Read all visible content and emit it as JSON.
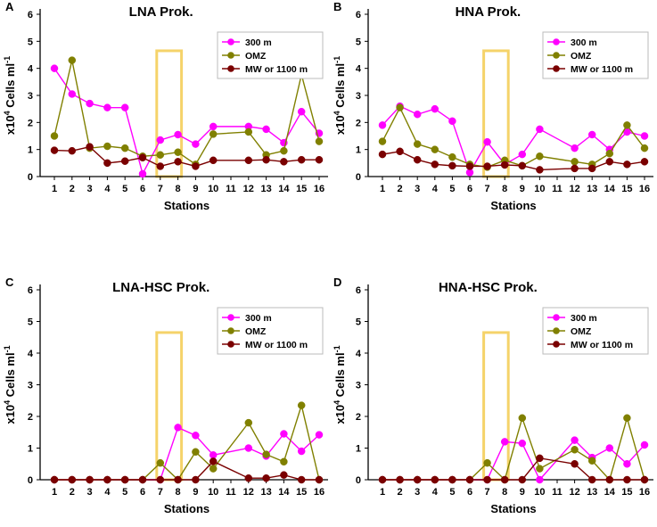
{
  "figure": {
    "line_colors": [
      "#ff00ff",
      "#808000",
      "#7a0000"
    ],
    "highlight_color": "#f5d36a",
    "axis_color": "#000000"
  },
  "chart_data": [
    {
      "type": "line",
      "panel": "A",
      "title": "LNA Prok.",
      "xlabel": "Stations",
      "ylabel_parts": [
        "x10",
        "4",
        " Cells ml",
        "-1"
      ],
      "categories": [
        "1",
        "2",
        "3",
        "4",
        "5",
        "6",
        "7",
        "8",
        "9",
        "10",
        "11",
        "12",
        "13",
        "14",
        "15",
        "16"
      ],
      "ylim": [
        0,
        6
      ],
      "yticks": [
        0,
        1,
        2,
        3,
        4,
        5,
        6
      ],
      "highlight_range": [
        7,
        8
      ],
      "highlight_top": 4.65,
      "legend_position": "top-right",
      "series": [
        {
          "name": "300 m",
          "x": [
            1,
            2,
            3,
            4,
            5,
            6,
            7,
            8,
            9,
            10,
            12,
            13,
            14,
            15,
            16
          ],
          "values": [
            4.0,
            3.05,
            2.7,
            2.55,
            2.55,
            0.1,
            1.35,
            1.55,
            1.2,
            1.85,
            1.85,
            1.75,
            1.25,
            2.4,
            1.6
          ]
        },
        {
          "name": "OMZ",
          "x": [
            1,
            2,
            3,
            4,
            5,
            6,
            7,
            8,
            9,
            10,
            12,
            13,
            14,
            15,
            16
          ],
          "values": [
            1.5,
            4.3,
            1.05,
            1.12,
            1.05,
            0.75,
            0.8,
            0.9,
            0.45,
            1.57,
            1.65,
            0.8,
            0.95,
            3.77,
            1.3
          ]
        },
        {
          "name": "MW or 1100 m",
          "x": [
            1,
            2,
            3,
            4,
            5,
            6,
            7,
            8,
            9,
            10,
            12,
            13,
            14,
            15,
            16
          ],
          "values": [
            0.97,
            0.95,
            1.1,
            0.5,
            0.57,
            0.7,
            0.38,
            0.55,
            0.38,
            0.6,
            0.6,
            0.62,
            0.55,
            0.62,
            0.62
          ]
        }
      ]
    },
    {
      "type": "line",
      "panel": "B",
      "title": "HNA Prok.",
      "xlabel": "Stations",
      "ylabel_parts": [
        "x10",
        "4",
        " Cells ml",
        "-1"
      ],
      "categories": [
        "1",
        "2",
        "3",
        "4",
        "5",
        "6",
        "7",
        "8",
        "9",
        "10",
        "11",
        "12",
        "13",
        "14",
        "15",
        "16"
      ],
      "ylim": [
        0,
        6
      ],
      "yticks": [
        0,
        1,
        2,
        3,
        4,
        5,
        6
      ],
      "highlight_range": [
        7,
        8
      ],
      "highlight_top": 4.65,
      "legend_position": "top-right",
      "series": [
        {
          "name": "300 m",
          "x": [
            1,
            2,
            3,
            4,
            5,
            6,
            7,
            8,
            9,
            10,
            12,
            13,
            14,
            15,
            16
          ],
          "values": [
            1.9,
            2.6,
            2.3,
            2.5,
            2.05,
            0.15,
            1.28,
            0.45,
            0.82,
            1.75,
            1.05,
            1.55,
            1.0,
            1.65,
            1.5
          ]
        },
        {
          "name": "OMZ",
          "x": [
            1,
            2,
            3,
            4,
            5,
            6,
            7,
            8,
            9,
            10,
            12,
            13,
            14,
            15,
            16
          ],
          "values": [
            1.3,
            2.55,
            1.2,
            1.0,
            0.72,
            0.45,
            0.35,
            0.6,
            0.4,
            0.75,
            0.55,
            0.45,
            0.85,
            1.9,
            1.05
          ]
        },
        {
          "name": "MW or 1100 m",
          "x": [
            1,
            2,
            3,
            4,
            5,
            6,
            7,
            8,
            9,
            10,
            12,
            13,
            14,
            15,
            16
          ],
          "values": [
            0.82,
            0.93,
            0.62,
            0.45,
            0.4,
            0.38,
            0.38,
            0.43,
            0.4,
            0.25,
            0.3,
            0.3,
            0.55,
            0.45,
            0.55
          ]
        }
      ]
    },
    {
      "type": "line",
      "panel": "C",
      "title": "LNA-HSC Prok.",
      "xlabel": "Stations",
      "ylabel_parts": [
        "x10",
        "4",
        " Cells ml",
        "-1"
      ],
      "categories": [
        "1",
        "2",
        "3",
        "4",
        "5",
        "6",
        "7",
        "8",
        "9",
        "10",
        "11",
        "12",
        "13",
        "14",
        "15",
        "16"
      ],
      "ylim": [
        0,
        6
      ],
      "yticks": [
        0,
        1,
        2,
        3,
        4,
        5,
        6
      ],
      "highlight_range": [
        7,
        8
      ],
      "highlight_top": 4.65,
      "legend_position": "top-right",
      "series": [
        {
          "name": "300 m",
          "x": [
            1,
            2,
            3,
            4,
            5,
            6,
            7,
            8,
            9,
            10,
            12,
            13,
            14,
            15,
            16
          ],
          "values": [
            0,
            0,
            0,
            0,
            0,
            0,
            0,
            1.65,
            1.4,
            0.78,
            1.0,
            0.75,
            1.45,
            0.9,
            1.42
          ]
        },
        {
          "name": "OMZ",
          "x": [
            1,
            2,
            3,
            4,
            5,
            6,
            7,
            8,
            9,
            10,
            12,
            13,
            14,
            15,
            16
          ],
          "values": [
            0,
            0,
            0,
            0,
            0,
            0,
            0.53,
            0,
            0.88,
            0.35,
            1.8,
            0.8,
            0.57,
            2.35,
            0
          ]
        },
        {
          "name": "MW or 1100 m",
          "x": [
            1,
            2,
            3,
            4,
            5,
            6,
            7,
            8,
            9,
            10,
            12,
            13,
            14,
            15,
            16
          ],
          "values": [
            0,
            0,
            0,
            0,
            0,
            0,
            0,
            0,
            0,
            0.58,
            0.05,
            0.05,
            0.15,
            0,
            0
          ]
        }
      ]
    },
    {
      "type": "line",
      "panel": "D",
      "title": "HNA-HSC Prok.",
      "xlabel": "Stations",
      "ylabel_parts": [
        "x10",
        "4",
        " Cells ml",
        "-1"
      ],
      "categories": [
        "1",
        "2",
        "3",
        "4",
        "5",
        "6",
        "7",
        "8",
        "9",
        "10",
        "11",
        "12",
        "13",
        "14",
        "15",
        "16"
      ],
      "ylim": [
        0,
        6
      ],
      "yticks": [
        0,
        1,
        2,
        3,
        4,
        5,
        6
      ],
      "highlight_range": [
        7,
        8
      ],
      "highlight_top": 4.65,
      "legend_position": "top-right",
      "series": [
        {
          "name": "300 m",
          "x": [
            1,
            2,
            3,
            4,
            5,
            6,
            7,
            8,
            9,
            10,
            12,
            13,
            14,
            15,
            16
          ],
          "values": [
            0,
            0,
            0,
            0,
            0,
            0,
            0,
            1.2,
            1.15,
            0,
            1.25,
            0.7,
            1.0,
            0.5,
            1.1
          ]
        },
        {
          "name": "OMZ",
          "x": [
            1,
            2,
            3,
            4,
            5,
            6,
            7,
            8,
            9,
            10,
            12,
            13,
            14,
            15,
            16
          ],
          "values": [
            0,
            0,
            0,
            0,
            0,
            0,
            0.53,
            0,
            1.95,
            0.35,
            0.95,
            0.6,
            0,
            1.95,
            0
          ]
        },
        {
          "name": "MW or 1100 m",
          "x": [
            1,
            2,
            3,
            4,
            5,
            6,
            7,
            8,
            9,
            10,
            12,
            13,
            14,
            15,
            16
          ],
          "values": [
            0,
            0,
            0,
            0,
            0,
            0,
            0,
            0,
            0,
            0.68,
            0.5,
            0,
            0,
            0,
            0
          ]
        }
      ]
    }
  ]
}
